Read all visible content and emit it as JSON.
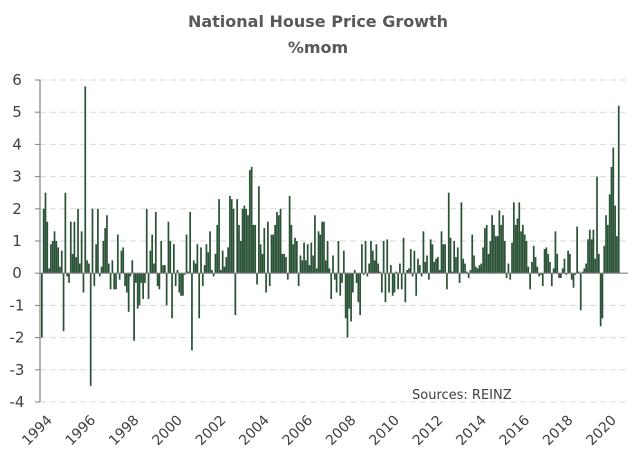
{
  "chart_data": {
    "type": "bar",
    "title": "National House Price Growth",
    "subtitle": "%mom",
    "xlabel": "",
    "ylabel": "",
    "source_note": "Sources: REINZ",
    "frequency": "monthly",
    "start": "1994-01",
    "ylim": [
      -4,
      6
    ],
    "yticks": [
      "-4",
      "-3",
      "-2",
      "-1",
      "0",
      "1",
      "2",
      "3",
      "4",
      "5",
      "6"
    ],
    "xticks": [
      "1994",
      "1996",
      "1998",
      "2000",
      "2002",
      "2004",
      "2006",
      "2008",
      "2010",
      "2012",
      "2014",
      "2016",
      "2018",
      "2020"
    ],
    "grid": true,
    "legend": "none",
    "bar_color": "#2a5236",
    "grid_color": "#d9d9d9",
    "axis_color": "#808080",
    "values": [
      -2.0,
      2.0,
      2.5,
      1.6,
      0.15,
      0.9,
      1.0,
      1.3,
      1.0,
      0.8,
      0.2,
      0.7,
      -1.8,
      2.5,
      -0.1,
      -0.3,
      1.6,
      0.6,
      1.6,
      0.5,
      2.0,
      0.3,
      1.3,
      -0.6,
      5.8,
      0.4,
      0.3,
      -3.5,
      2.0,
      -0.4,
      0.9,
      2.0,
      -0.1,
      0.2,
      1.0,
      1.4,
      1.8,
      0.3,
      -0.5,
      0.4,
      -0.5,
      -0.5,
      1.2,
      -0.2,
      0.7,
      0.8,
      -0.4,
      -0.6,
      -1.2,
      -0.1,
      0.4,
      -2.1,
      -0.3,
      -1.1,
      -1.0,
      -0.3,
      -0.8,
      -0.3,
      2.0,
      -0.8,
      0.7,
      1.2,
      0.3,
      1.9,
      -0.4,
      -0.5,
      1.0,
      0.25,
      0.25,
      -1.0,
      1.6,
      1.0,
      -1.4,
      0.9,
      -0.4,
      0.1,
      -0.6,
      -0.7,
      -0.7,
      -0.05,
      1.2,
      0.05,
      1.9,
      -2.4,
      0.4,
      0.3,
      0.9,
      -1.4,
      0.8,
      -0.4,
      0.25,
      0.9,
      0.65,
      1.3,
      0.1,
      -0.1,
      0.6,
      1.5,
      2.3,
      0.1,
      0.7,
      0.2,
      0.5,
      0.8,
      2.4,
      2.3,
      2.0,
      -1.3,
      2.3,
      1.5,
      1.0,
      2.0,
      2.1,
      2.0,
      1.8,
      3.2,
      3.3,
      1.5,
      1.5,
      -0.35,
      2.7,
      0.9,
      0.6,
      1.4,
      -0.6,
      1.6,
      -0.4,
      1.2,
      1.2,
      1.5,
      1.9,
      1.8,
      2.0,
      0.6,
      0.6,
      0.5,
      -0.2,
      2.4,
      1.5,
      0.9,
      1.1,
      1.0,
      -0.4,
      0.55,
      0.4,
      0.95,
      0.4,
      0.9,
      0.25,
      0.95,
      0.55,
      1.8,
      0.15,
      1.3,
      1.2,
      1.6,
      1.6,
      0.4,
      1.0,
      0.15,
      -0.8,
      0.55,
      -0.2,
      -0.6,
      1.0,
      -0.7,
      -0.3,
      0.7,
      -1.4,
      -2.0,
      -1.1,
      -1.5,
      -0.6,
      0.1,
      -0.3,
      -0.9,
      -1.3,
      0.9,
      -0.05,
      1.0,
      -0.1,
      0.3,
      1.0,
      0.7,
      0.4,
      0.9,
      0.3,
      0.05,
      -0.6,
      1.0,
      -0.9,
      1.05,
      -0.6,
      0.25,
      -0.7,
      -0.6,
      0.05,
      -0.5,
      0.3,
      -0.5,
      1.1,
      -0.9,
      0.1,
      0.15,
      0.75,
      -0.1,
      0.7,
      -0.7,
      0.45,
      0.25,
      -0.1,
      1.3,
      0.35,
      0.55,
      -0.2,
      1.05,
      0.9,
      0.35,
      0.45,
      0.5,
      0.1,
      1.3,
      0.9,
      0.9,
      -0.5,
      2.5,
      1.1,
      0.05,
      1.0,
      0.5,
      0.8,
      -0.3,
      2.2,
      0.45,
      0.3,
      0.05,
      -0.15,
      0.1,
      1.2,
      0.55,
      0.2,
      0.15,
      0.25,
      0.3,
      0.8,
      1.4,
      1.5,
      0.6,
      1.0,
      1.8,
      1.5,
      1.15,
      1.15,
      1.95,
      1.5,
      1.8,
      1.0,
      -0.15,
      0.3,
      -0.2,
      0.95,
      2.2,
      1.5,
      1.7,
      2.2,
      1.3,
      1.5,
      1.2,
      1.0,
      0.2,
      -0.5,
      0.35,
      0.85,
      0.5,
      0.2,
      -0.1,
      -0.05,
      -0.4,
      0.75,
      0.8,
      0.6,
      0.35,
      -0.4,
      0.15,
      1.3,
      0.6,
      -0.15,
      -0.15,
      0.15,
      0.45,
      -0.05,
      0.7,
      0.6,
      -0.2,
      -0.45,
      -0.05,
      1.45,
      0.05,
      -1.15,
      0.05,
      0.15,
      0.3,
      1.05,
      1.35,
      1.05,
      1.35,
      0.45,
      3.0,
      0.6,
      -1.65,
      -1.4,
      0.85,
      1.8,
      1.5,
      2.45,
      3.3,
      3.9,
      2.1,
      1.15,
      5.2
    ]
  }
}
